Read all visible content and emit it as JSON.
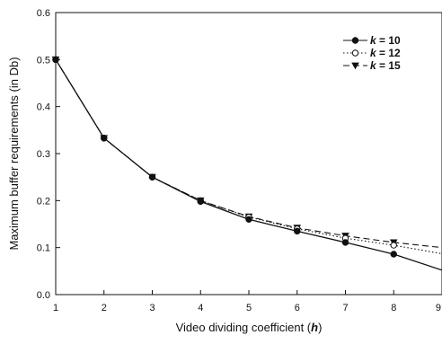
{
  "chart_data": {
    "type": "line",
    "title": "",
    "xlabel_main": "Video dividing coefficient (",
    "xlabel_var": "h",
    "xlabel_end": ")",
    "ylabel": "Maximum buffer requirements (in Db)",
    "xlim": [
      1,
      9
    ],
    "ylim": [
      0,
      0.6
    ],
    "x_ticks": [
      "1",
      "2",
      "3",
      "4",
      "5",
      "6",
      "7",
      "8",
      "9"
    ],
    "y_ticks": [
      "0.0",
      "0.1",
      "0.2",
      "0.3",
      "0.4",
      "0.5",
      "0.6"
    ],
    "x": [
      1,
      2,
      3,
      4,
      5,
      6,
      7,
      8,
      9
    ],
    "legend_position": "top-right",
    "grid": false,
    "series": [
      {
        "name": "k = 10",
        "legend_var": "k",
        "legend_value": "= 10",
        "marker": "filled-circle",
        "line_style": "solid",
        "color": "#111111",
        "values": [
          0.5,
          0.333,
          0.25,
          0.198,
          0.16,
          0.135,
          0.111,
          0.086,
          0.052
        ]
      },
      {
        "name": "k = 12",
        "legend_var": "k",
        "legend_value": "= 12",
        "marker": "open-circle",
        "line_style": "dotted",
        "color": "#111111",
        "values": [
          0.5,
          0.333,
          0.25,
          0.2,
          0.165,
          0.14,
          0.12,
          0.105,
          0.087
        ]
      },
      {
        "name": "k = 15",
        "legend_var": "k",
        "legend_value": "= 15",
        "marker": "filled-triangle-down",
        "line_style": "dashed",
        "color": "#111111",
        "values": [
          0.5,
          0.333,
          0.25,
          0.2,
          0.166,
          0.142,
          0.125,
          0.111,
          0.1
        ]
      }
    ]
  }
}
